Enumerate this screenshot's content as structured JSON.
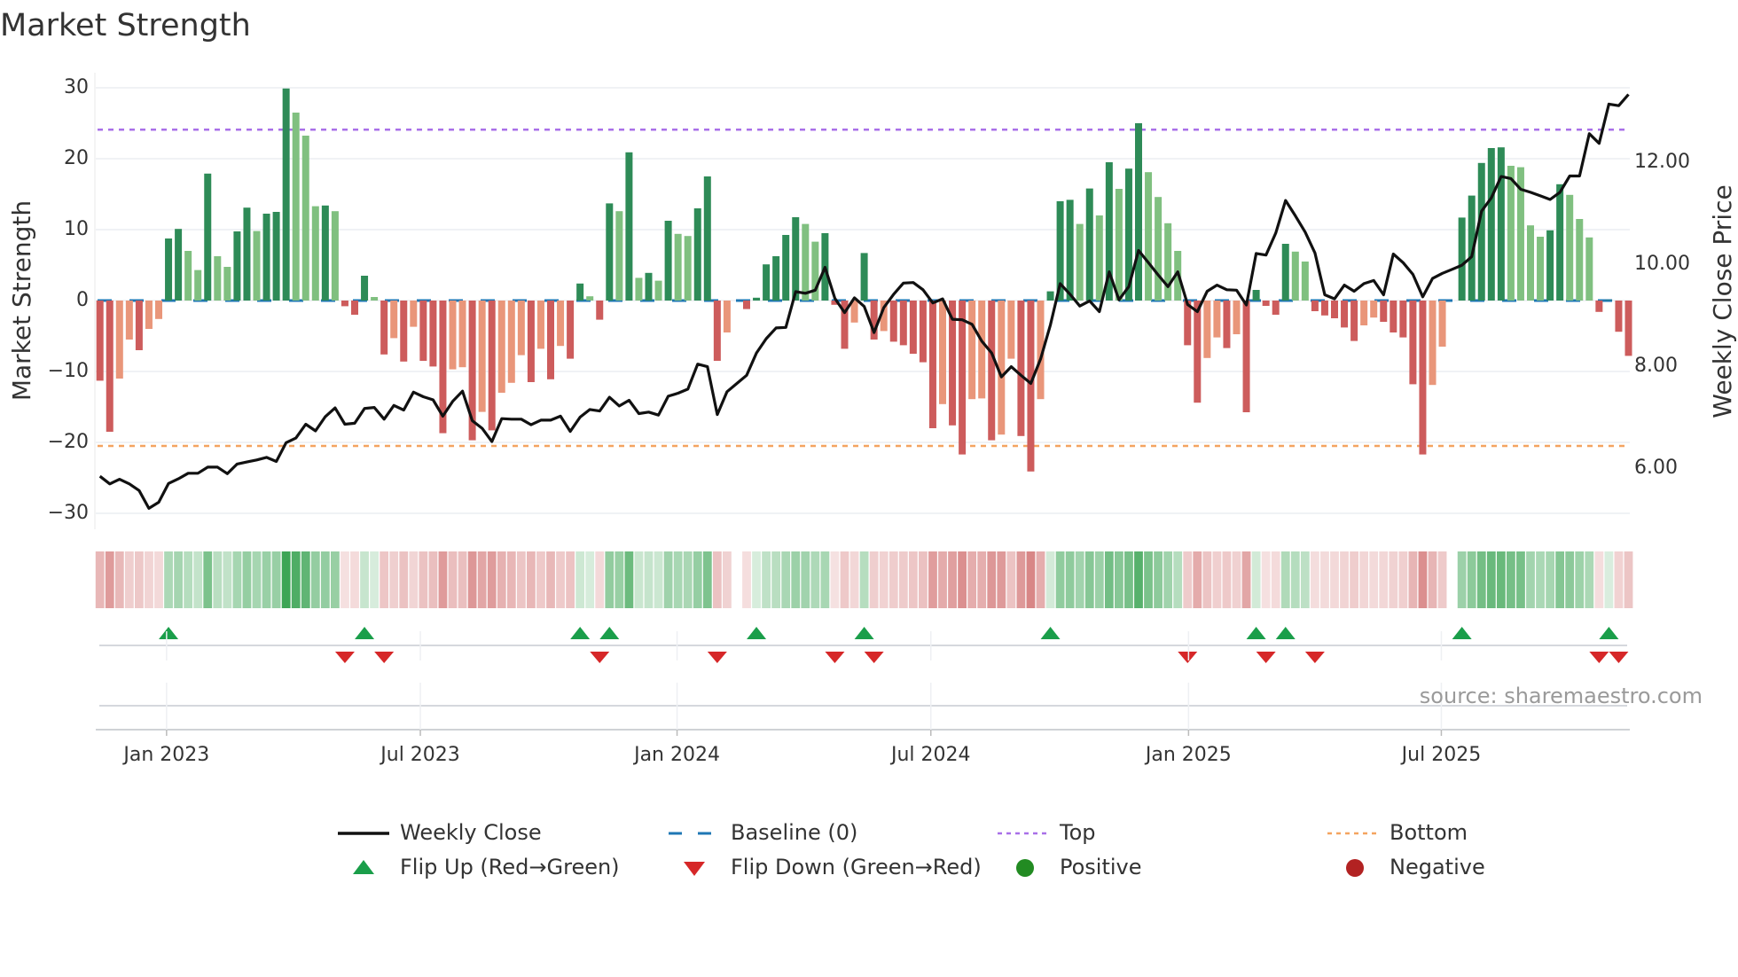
{
  "chart_data": {
    "type": "bar",
    "title": "Market Strength",
    "ylabel": "Market Strength",
    "y2label": "Weekly Close Price",
    "ylim": [
      -32.2,
      32.2
    ],
    "y2lim": [
      4.8,
      13.76
    ],
    "yticks": [
      30,
      20,
      10,
      0,
      -10,
      -20,
      -30
    ],
    "ytick_labels": [
      "30",
      "20",
      "10",
      "0",
      "−10",
      "−20",
      "−30"
    ],
    "y2ticks": [
      12,
      10,
      8,
      6
    ],
    "y2tick_labels": [
      "12.00",
      "10.00",
      "8.00",
      "6.00"
    ],
    "xticks": [
      {
        "label": "Jan 2023",
        "week": 6.8
      },
      {
        "label": "Jul 2023",
        "week": 32.7
      },
      {
        "label": "Jan 2024",
        "week": 58.9
      },
      {
        "label": "Jul 2024",
        "week": 84.8
      },
      {
        "label": "Jan 2025",
        "week": 111.1
      },
      {
        "label": "Jul 2025",
        "week": 136.9
      }
    ],
    "top_level": 24.1,
    "bottom_level": -20.5,
    "baseline": 0,
    "grid": true,
    "legend_placement": "bottom-center",
    "market_strength": [
      -11.3,
      -18.5,
      -11,
      -5.5,
      -7,
      -4,
      -2.6,
      8.75,
      10.1,
      7,
      4.3,
      17.9,
      6.25,
      4.75,
      9.75,
      13.1,
      9.8,
      12.25,
      12.5,
      29.9,
      26.5,
      23.25,
      13.3,
      13.4,
      12.6,
      -0.8,
      -2,
      3.5,
      0.5,
      -7.6,
      -5.3,
      -8.6,
      -3.7,
      -8.5,
      -9.3,
      -18.7,
      -9.7,
      -9.4,
      -19.7,
      -15.7,
      -18.3,
      -13,
      -11.6,
      -7.7,
      -11.5,
      -6.8,
      -11.1,
      -6.4,
      -8.2,
      2.4,
      0.6,
      -2.7,
      13.7,
      12.6,
      20.9,
      3.2,
      3.9,
      2.8,
      11.25,
      9.4,
      9.1,
      13,
      17.5,
      -8.5,
      -4.5,
      0,
      -1.2,
      0.4,
      5.1,
      6.25,
      9.25,
      11.75,
      10.8,
      8.3,
      9.5,
      -0.6,
      -6.8,
      -3.1,
      6.7,
      -5.5,
      -4.3,
      -5.8,
      -6.3,
      -7.5,
      -8.7,
      -18,
      -14.6,
      -17.6,
      -21.7,
      -13.9,
      -13.8,
      -19.7,
      -18.9,
      -8.2,
      -19.1,
      -24.1,
      -13.9,
      1.3,
      14,
      14.2,
      10.8,
      15.8,
      12,
      19.5,
      15.75,
      18.6,
      25,
      18.1,
      14.6,
      10.9,
      7,
      -6.3,
      -14.4,
      -8.1,
      -5.2,
      -6.7,
      -4.75,
      -15.75,
      1.5,
      -0.75,
      -2,
      8,
      6.9,
      5.5,
      -1.5,
      -2.1,
      -2.5,
      -3.8,
      -5.7,
      -3.5,
      -2.4,
      -3,
      -4.5,
      -5.2,
      -11.8,
      -21.7,
      -11.9,
      -6.5,
      0,
      11.7,
      14.8,
      19.4,
      21.5,
      21.6,
      19,
      18.8,
      10.6,
      9,
      9.9,
      16.4,
      14.9,
      11.5,
      8.9,
      -1.6,
      0.05,
      -4.4,
      -7.8
    ],
    "weekly_close": [
      5.84,
      5.69,
      5.78,
      5.69,
      5.56,
      5.21,
      5.33,
      5.7,
      5.79,
      5.9,
      5.9,
      6.02,
      6.02,
      5.89,
      6.08,
      6.12,
      6.16,
      6.21,
      6.13,
      6.5,
      6.59,
      6.86,
      6.73,
      7.01,
      7.18,
      6.86,
      6.88,
      7.17,
      7.19,
      6.96,
      7.23,
      7.14,
      7.49,
      7.4,
      7.34,
      7.02,
      7.31,
      7.51,
      6.93,
      6.78,
      6.52,
      6.97,
      6.96,
      6.96,
      6.85,
      6.94,
      6.94,
      7.02,
      6.72,
      7.0,
      7.15,
      7.12,
      7.39,
      7.22,
      7.33,
      7.07,
      7.1,
      7.04,
      7.41,
      7.47,
      7.55,
      8.04,
      7.99,
      7.05,
      7.5,
      7.66,
      7.82,
      8.26,
      8.54,
      8.75,
      8.76,
      9.46,
      9.43,
      9.49,
      9.94,
      9.33,
      9.05,
      9.34,
      9.17,
      8.66,
      9.15,
      9.41,
      9.63,
      9.64,
      9.5,
      9.24,
      9.32,
      8.92,
      8.91,
      8.82,
      8.49,
      8.26,
      7.79,
      7.99,
      7.82,
      7.66,
      8.14,
      8.81,
      9.62,
      9.41,
      9.18,
      9.28,
      9.07,
      9.85,
      9.3,
      9.56,
      10.27,
      10.03,
      9.79,
      9.56,
      9.85,
      9.21,
      9.07,
      9.47,
      9.59,
      9.5,
      9.49,
      9.2,
      10.21,
      10.18,
      10.61,
      11.25,
      10.95,
      10.63,
      10.22,
      9.4,
      9.32,
      9.59,
      9.47,
      9.62,
      9.68,
      9.4,
      10.2,
      10.03,
      9.8,
      9.36,
      9.72,
      9.82,
      9.9,
      9.98,
      10.15,
      11.04,
      11.3,
      11.72,
      11.68,
      11.47,
      11.41,
      11.34,
      11.27,
      11.41,
      11.73,
      11.73,
      12.56,
      12.37,
      13.14,
      13.11,
      13.33
    ],
    "legend": [
      {
        "label": "Weekly Close",
        "kind": "line",
        "color": "#111111"
      },
      {
        "label": "Baseline (0)",
        "kind": "dash",
        "color": "#1f77b4"
      },
      {
        "label": "Top",
        "kind": "dot",
        "color": "#a970e8"
      },
      {
        "label": "Bottom",
        "kind": "dot",
        "color": "#f4a460"
      },
      {
        "label": "Flip Up (Red→Green)",
        "kind": "up",
        "color": "#1a9e4a"
      },
      {
        "label": "Flip Down (Green→Red)",
        "kind": "down",
        "color": "#d62728"
      },
      {
        "label": "Positive",
        "kind": "circle",
        "color": "#228b22"
      },
      {
        "label": "Negative",
        "kind": "circle",
        "color": "#b22222"
      }
    ],
    "colors": {
      "pos_strong": "#2e8b57",
      "pos_weak": "#80c080",
      "neg_strong": "#cd5c5c",
      "neg_weak": "#e9967a",
      "heat_pos": "#2e9e48",
      "heat_neg": "#cd6464"
    },
    "source": "source: sharemaestro.com"
  }
}
